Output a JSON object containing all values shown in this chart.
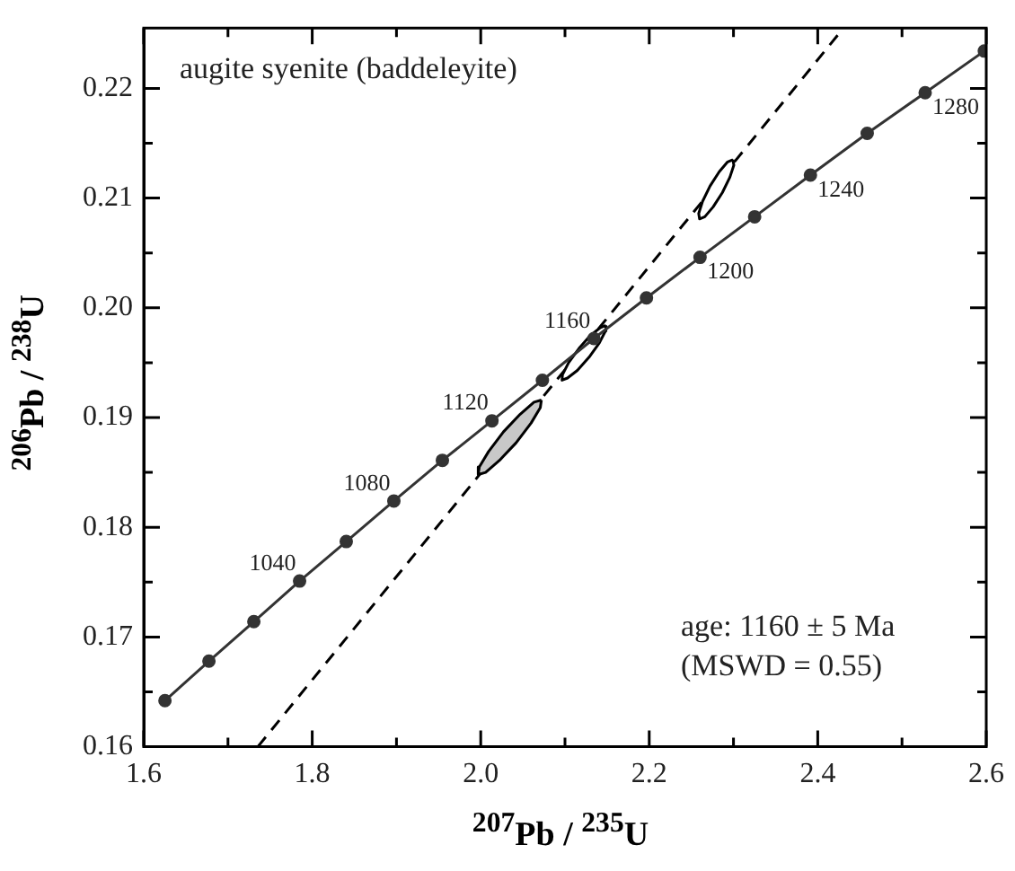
{
  "chart_data": {
    "type": "line",
    "xlabel": "$^{207}$Pb / $^{235}$U",
    "ylabel": "$^{206}$Pb / $^{238}$U",
    "xlim": [
      1.6,
      2.6
    ],
    "ylim": [
      0.16,
      0.2255
    ],
    "xticks": [
      1.6,
      {
        "value": 1.7,
        "label": null
      },
      1.8,
      {
        "value": 1.9,
        "label": null
      },
      {
        "value": 2,
        "label": "2.0"
      },
      {
        "value": 2.1,
        "label": null
      },
      2.2,
      {
        "value": 2.3,
        "label": null
      },
      2.4,
      {
        "value": 2.5,
        "label": null
      },
      2.6
    ],
    "yticks": [
      0.16,
      {
        "value": 0.165,
        "label": null
      },
      0.17,
      {
        "value": 0.175,
        "label": null
      },
      0.18,
      {
        "value": 0.185,
        "label": null
      },
      0.19,
      {
        "value": 0.195,
        "label": null
      },
      {
        "value": 0.2,
        "label": "0.20"
      },
      {
        "value": 0.205,
        "label": null
      },
      0.21,
      {
        "value": 0.215,
        "label": null
      },
      0.22
    ],
    "grid": false,
    "legend": false,
    "series": [
      {
        "type": "line",
        "color": "#333333",
        "marker": "circle",
        "line_style": "solid",
        "x": [
          1.6252,
          1.6774,
          1.7307,
          1.785,
          1.8404,
          1.8969,
          1.9545,
          2.0133,
          2.0732,
          2.1343,
          2.1967,
          2.2603,
          2.3251,
          2.3913,
          2.4587,
          2.5275,
          2.5977
        ],
        "values": [
          0.1642,
          0.1678,
          0.1714,
          0.1751,
          0.1787,
          0.1824,
          0.1861,
          0.1897,
          0.1934,
          0.1972,
          0.2009,
          0.2046,
          0.2083,
          0.2121,
          0.2159,
          0.2196,
          0.2234
        ]
      },
      {
        "type": "area",
        "color": "#c8c8c8",
        "marker": "none",
        "line_style": "solid",
        "x": [
          2.072,
          2.0632,
          2.0468,
          2.027,
          2.0093,
          1.9983,
          1.997,
          2.0058,
          2.0223,
          2.042,
          2.0598,
          2.0707,
          2.072
        ],
        "values": [
          0.1916,
          0.1914,
          0.1903,
          0.1887,
          0.1869,
          0.1855,
          0.1848,
          0.185,
          0.1861,
          0.1877,
          0.1895,
          0.1909,
          0.1916
        ]
      },
      {
        "type": "area",
        "color": "#ffffff",
        "marker": "none",
        "line_style": "solid",
        "x": [
          2.1486,
          2.1421,
          2.1304,
          2.1166,
          2.1043,
          2.097,
          2.0965,
          2.103,
          2.1147,
          2.1286,
          2.1408,
          2.1481,
          2.1486
        ],
        "values": [
          0.1984,
          0.1982,
          0.1975,
          0.1963,
          0.195,
          0.1939,
          0.1934,
          0.1936,
          0.1943,
          0.1955,
          0.1968,
          0.1979,
          0.1984
        ]
      },
      {
        "type": "area",
        "color": "#ffffff",
        "marker": "none",
        "line_style": "solid",
        "x": [
          2.2993,
          2.293,
          2.2831,
          2.2722,
          2.2633,
          2.2587,
          2.2597,
          2.266,
          2.2759,
          2.2868,
          2.2957,
          2.3004,
          2.2993
        ],
        "values": [
          0.2135,
          0.2133,
          0.2124,
          0.2111,
          0.2097,
          0.2086,
          0.2081,
          0.2083,
          0.2092,
          0.2105,
          0.2119,
          0.213,
          0.2135
        ]
      },
      {
        "type": "line",
        "color": "#000000",
        "marker": "none",
        "line_style": "dashed",
        "x": [
          1.7354,
          2.4285
        ],
        "values": [
          0.16,
          0.2253
        ]
      }
    ],
    "annotations": [
      "augite syenite (baddeleyite)",
      "age: 1160 ± 5 Ma",
      "(MSWD = 0.55)",
      {
        "text": "1040",
        "x": 1.785,
        "y": 0.17507
      },
      {
        "text": "1080",
        "x": 1.8969,
        "y": 0.18238
      },
      {
        "text": "1120",
        "x": 2.0133,
        "y": 0.18974
      },
      {
        "text": "1160",
        "x": 2.1343,
        "y": 0.19715
      },
      {
        "text": "1200",
        "x": 2.2603,
        "y": 0.2046
      },
      {
        "text": "1240",
        "x": 2.3913,
        "y": 0.2121
      },
      {
        "text": "1280",
        "x": 2.5275,
        "y": 0.21964
      }
    ]
  }
}
